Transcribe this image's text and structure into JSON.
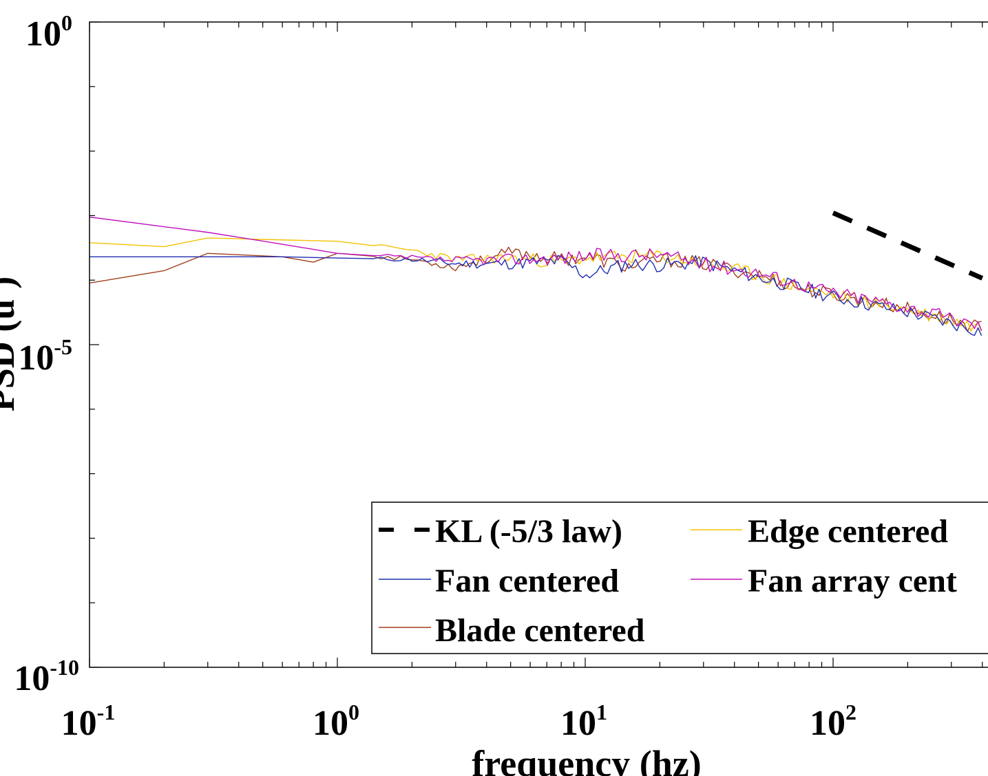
{
  "chart_data": {
    "type": "line",
    "title": "",
    "xlabel": "frequency (hz)",
    "ylabel": "PSD (u')",
    "xscale": "log",
    "yscale": "log",
    "xlim": [
      0.1,
      400
    ],
    "ylim": [
      1e-10,
      1
    ],
    "x_ticks": [
      {
        "base": "10",
        "exp": "-1",
        "value": 0.1
      },
      {
        "base": "10",
        "exp": "0",
        "value": 1
      },
      {
        "base": "10",
        "exp": "1",
        "value": 10
      },
      {
        "base": "10",
        "exp": "2",
        "value": 100
      }
    ],
    "y_ticks": [
      {
        "base": "10",
        "exp": "0",
        "value": 1
      },
      {
        "base": "10",
        "exp": "-5",
        "value": 1e-05
      },
      {
        "base": "10",
        "exp": "-10",
        "value": 1e-10
      }
    ],
    "legend": {
      "placement": "bottom-right",
      "entries": [
        {
          "label": "KL (-5/3 law)",
          "color": "#000000",
          "style": "dashed"
        },
        {
          "label": "Edge centered",
          "color": "#f2c200",
          "style": "solid"
        },
        {
          "label": "Fan centered",
          "color": "#1f2db0",
          "style": "solid"
        },
        {
          "label": "Fan array cent",
          "color": "#c010c0",
          "style": "solid"
        },
        {
          "label": "Blade centered",
          "color": "#a0401a",
          "style": "solid"
        }
      ]
    },
    "series": [
      {
        "name": "KL (-5/3 law)",
        "color": "#000000",
        "style": "dashed",
        "noise": 0,
        "x": [
          100,
          400
        ],
        "y": [
          0.0011,
          0.000107
        ]
      },
      {
        "name": "Fan centered",
        "color": "#1f2db0",
        "style": "solid",
        "noise": 0.22,
        "seed": 11,
        "x": [
          0.1,
          0.3,
          0.6,
          1,
          2,
          3,
          5,
          8,
          10,
          15,
          20,
          30,
          50,
          80,
          100,
          200,
          400
        ],
        "y": [
          0.00023,
          0.00023,
          0.00023,
          0.00022,
          0.00021,
          0.00018,
          0.00018,
          0.0002,
          0.00012,
          0.00018,
          0.00017,
          0.00019,
          0.00011,
          7e-05,
          5.5e-05,
          3.2e-05,
          1.6e-05
        ]
      },
      {
        "name": "Edge centered",
        "color": "#f2c200",
        "style": "solid",
        "noise": 0.22,
        "seed": 23,
        "x": [
          0.1,
          0.2,
          0.3,
          0.6,
          1,
          2,
          3,
          5,
          8,
          10,
          20,
          30,
          50,
          80,
          100,
          200,
          400
        ],
        "y": [
          0.00038,
          0.00033,
          0.00045,
          0.00042,
          0.0004,
          0.00029,
          0.00021,
          0.00022,
          0.00019,
          0.00022,
          0.00024,
          0.00018,
          0.00012,
          7e-05,
          6e-05,
          3.5e-05,
          1.8e-05
        ]
      },
      {
        "name": "Fan array cent",
        "color": "#c010c0",
        "style": "solid",
        "noise": 0.22,
        "seed": 37,
        "x": [
          0.1,
          0.3,
          0.6,
          1,
          2,
          3,
          5,
          8,
          10,
          20,
          30,
          50,
          80,
          100,
          200,
          400
        ],
        "y": [
          0.00095,
          0.00055,
          0.00036,
          0.00026,
          0.00022,
          0.0002,
          0.00021,
          0.00022,
          0.00024,
          0.00025,
          0.00018,
          0.00013,
          8e-05,
          6.5e-05,
          3.8e-05,
          1.9e-05
        ]
      },
      {
        "name": "Blade centered",
        "color": "#a0401a",
        "style": "solid",
        "noise": 0.22,
        "seed": 53,
        "x": [
          0.1,
          0.2,
          0.3,
          0.6,
          0.8,
          1,
          2,
          3,
          5,
          8,
          10,
          15,
          20,
          30,
          50,
          80,
          100,
          200,
          400
        ],
        "y": [
          9e-05,
          0.00014,
          0.00026,
          0.00023,
          0.00019,
          0.00026,
          0.00021,
          0.00016,
          0.00027,
          0.00021,
          0.00023,
          0.00016,
          0.00021,
          0.00018,
          0.00012,
          7e-05,
          6e-05,
          3.6e-05,
          1.8e-05
        ]
      }
    ]
  }
}
